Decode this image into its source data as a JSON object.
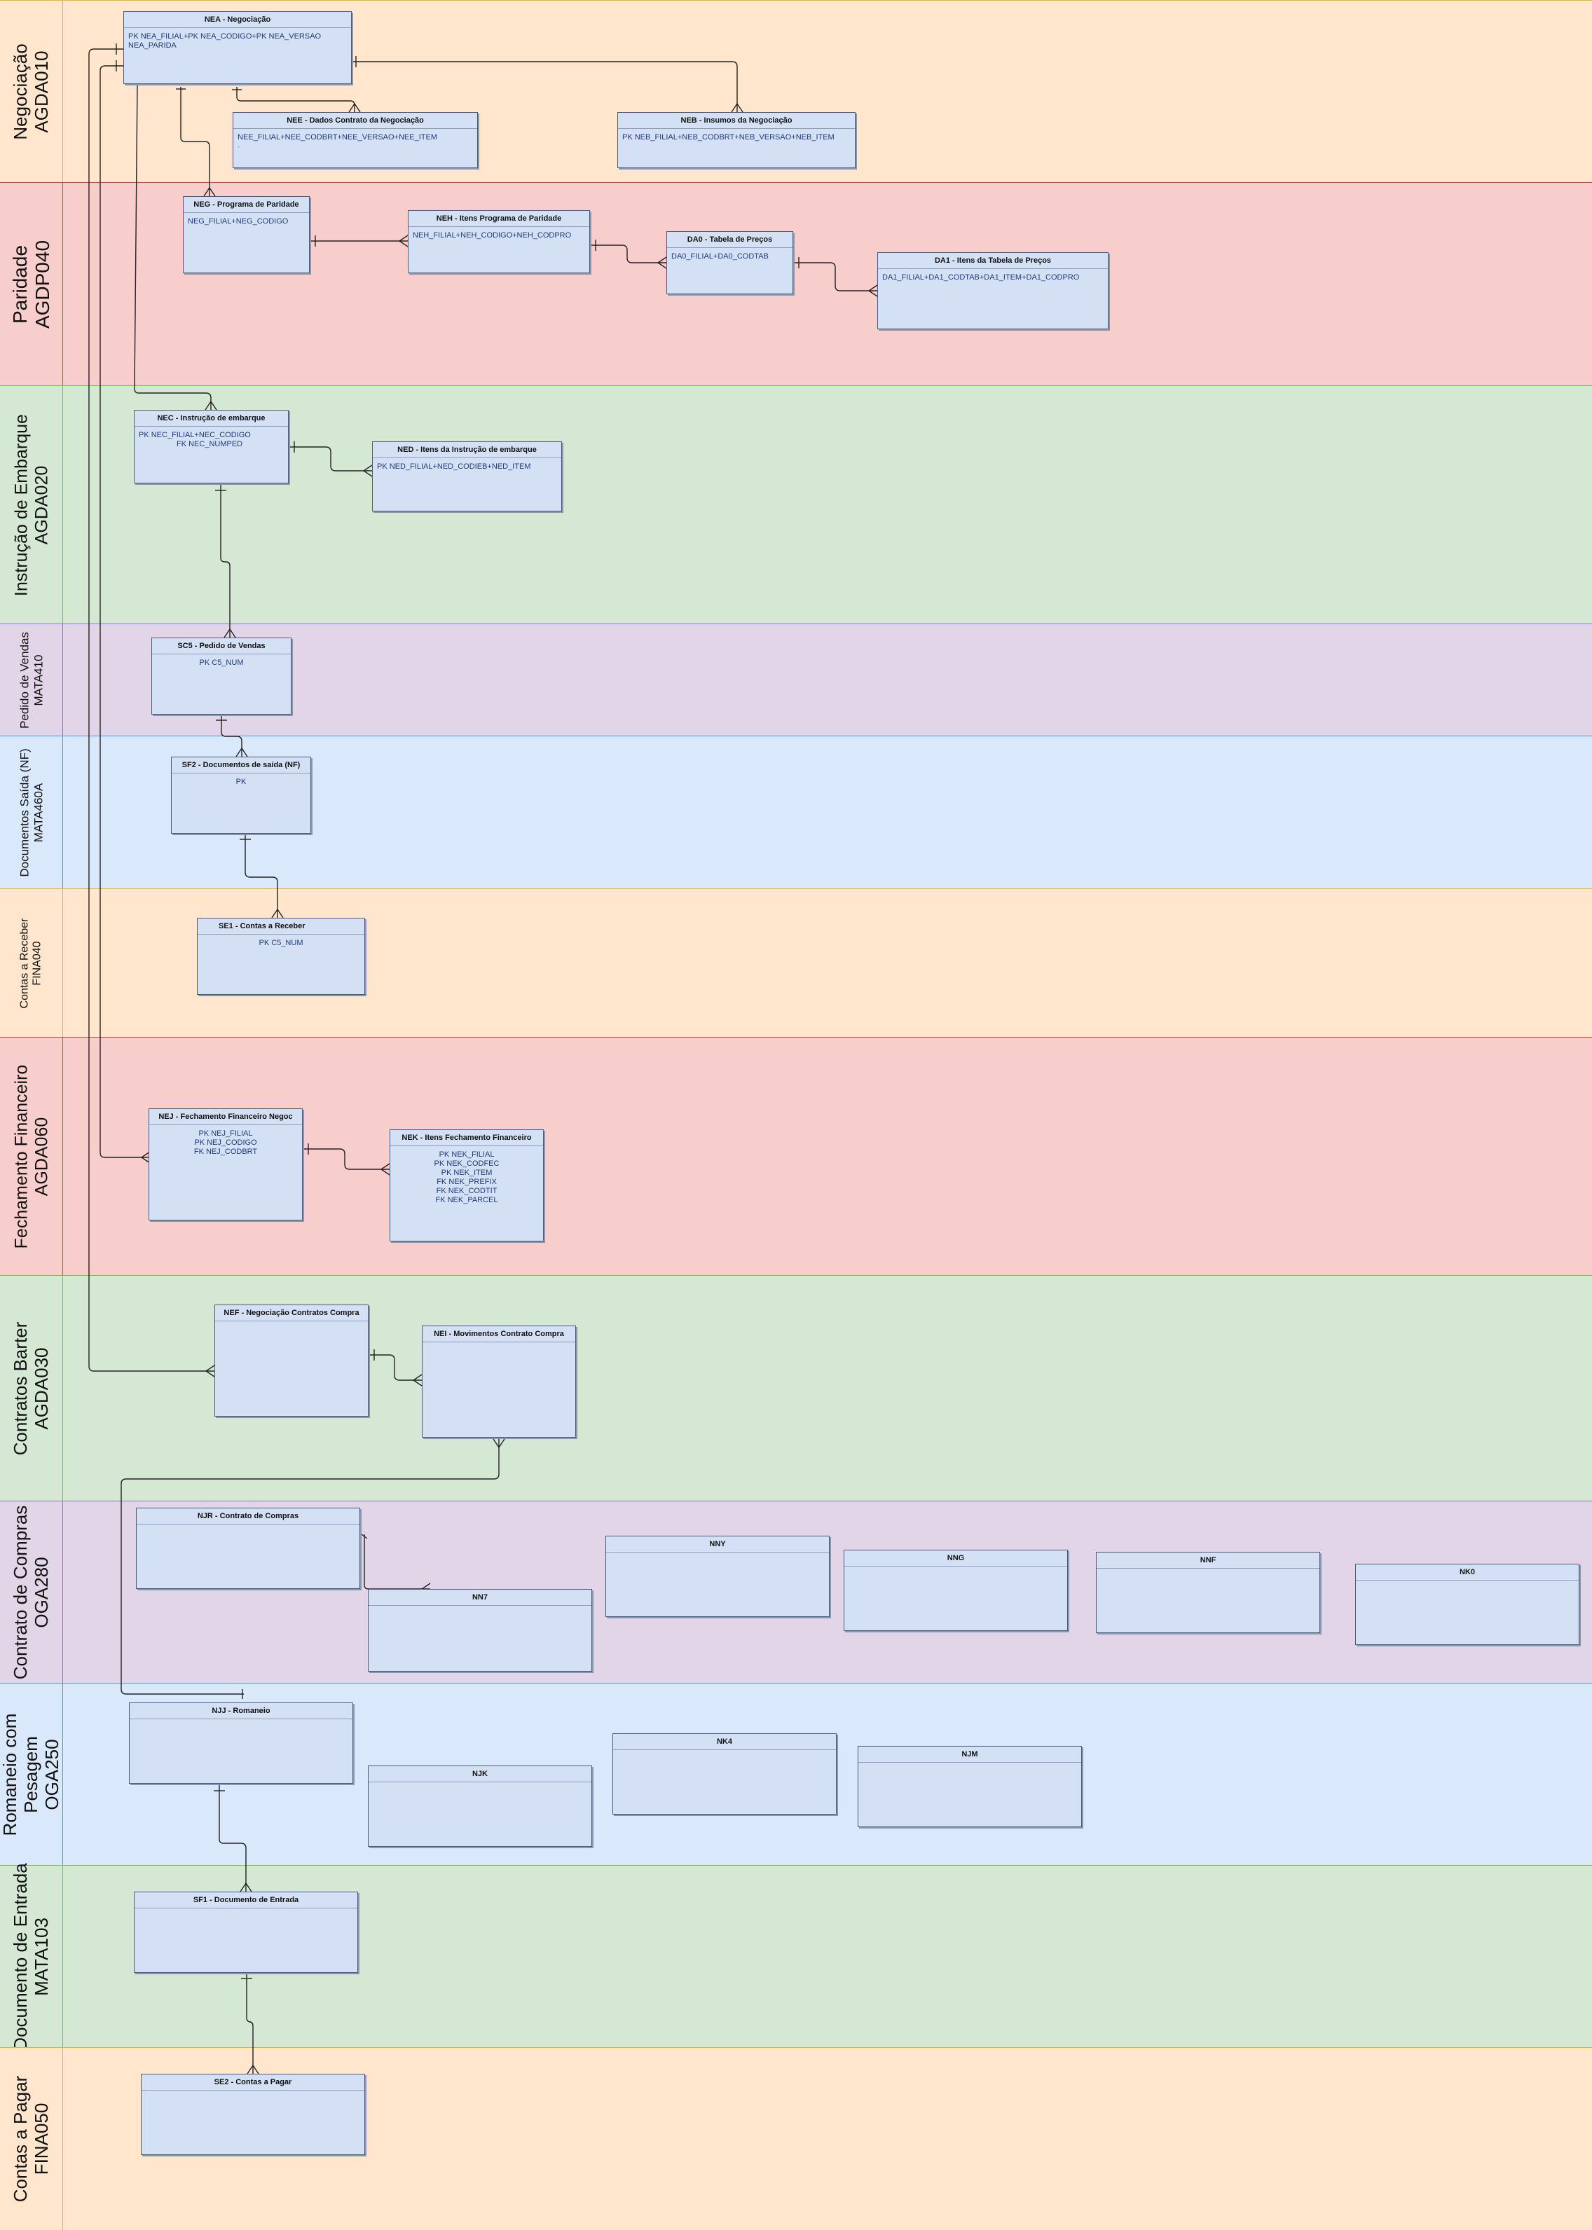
{
  "colors": {
    "orange": "#ffe6cc",
    "orange_border": "#d6b656",
    "red": "#f8cecc",
    "red_border": "#b85450",
    "green": "#d5e8d4",
    "green_border": "#82b366",
    "purple": "#e1d5e7",
    "purple_border": "#9673a6",
    "blue": "#dae8fc",
    "blue_border": "#6c8ebf",
    "entity_fill": "#d4e1f5",
    "entity_text": "#1f3a7a"
  },
  "lanes": [
    {
      "line1": "Negociação",
      "line2": "AGDA010"
    },
    {
      "line1": "Paridade",
      "line2": "AGDP040"
    },
    {
      "line1": "Instrução de Embarque",
      "line2": "AGDA020"
    },
    {
      "line1": "Pedido de Vendas",
      "line2": "MATA410"
    },
    {
      "line1": "Documentos Saída (NF)",
      "line2": "MATA460A"
    },
    {
      "line1": "Contas a Receber",
      "line2": "FINA040"
    },
    {
      "line1": "Fechamento Financeiro",
      "line2": "AGDA060"
    },
    {
      "line1": "Contratos Barter",
      "line2": "AGDA030"
    },
    {
      "line1": "Contrato de Compras",
      "line2": "OGA280"
    },
    {
      "line1": "Romaneio com Pesagem",
      "line2": "OGA250"
    },
    {
      "line1": "Documento de Entrada",
      "line2": "MATA103"
    },
    {
      "line1": "Contas a Pagar",
      "line2": "FINA050"
    }
  ],
  "entities": {
    "nea": {
      "title": "NEA - Negociação",
      "lines": [
        "PK NEA_FILIAL+PK NEA_CODIGO+PK NEA_VERSAO",
        "NEA_PARIDA"
      ]
    },
    "nee": {
      "title": "NEE - Dados Contrato da Negociação",
      "lines": [
        "NEE_FILIAL+NEE_CODBRT+NEE_VERSAO+NEE_ITEM",
        "-"
      ]
    },
    "neb": {
      "title": "NEB - Insumos da Negociação",
      "lines": [
        "PK NEB_FILIAL+NEB_CODBRT+NEB_VERSAO+NEB_ITEM"
      ]
    },
    "neg": {
      "title": "NEG - Programa de Paridade",
      "lines": [
        "NEG_FILIAL+NEG_CODIGO"
      ]
    },
    "neh": {
      "title": "NEH - Itens Programa de Paridade",
      "lines": [
        "NEH_FILIAL+NEH_CODIGO+NEH_CODPRO"
      ]
    },
    "da0": {
      "title": "DA0 - Tabela de Preços",
      "lines": [
        "DA0_FILIAL+DA0_CODTAB"
      ]
    },
    "da1": {
      "title": "DA1 - Itens da Tabela de Preços",
      "lines": [
        "DA1_FILIAL+DA1_CODTAB+DA1_ITEM+DA1_CODPRO"
      ]
    },
    "nec": {
      "title": "NEC - Instrução de embarque",
      "lines": [
        "PK NEC_FILIAL+NEC_CODIGO",
        "FK NEC_NUMPED"
      ]
    },
    "ned": {
      "title": "NED - Itens da Instrução de embarque",
      "lines": [
        "PK NED_FILIAL+NED_CODIEB+NED_ITEM"
      ]
    },
    "sc5": {
      "title": "SC5 - Pedido de Vendas",
      "lines": [
        "PK C5_NUM"
      ]
    },
    "sf2": {
      "title": "SF2 - Documentos de saída (NF)",
      "lines": [
        "PK"
      ]
    },
    "se1": {
      "title": "SE1 - Contas a Receber",
      "lines": [
        "PK C5_NUM"
      ]
    },
    "nej": {
      "title": "NEJ - Fechamento Financeiro Negoc",
      "lines": [
        "PK NEJ_FILIAL",
        "PK NEJ_CODIGO",
        "FK NEJ_CODBRT"
      ]
    },
    "nek": {
      "title": "NEK - Itens Fechamento Financeiro",
      "lines": [
        "PK NEK_FILIAL",
        "PK NEK_CODFEC",
        "PK NEK_ITEM",
        "FK NEK_PREFIX",
        "FK NEK_CODTIT",
        "FK NEK_PARCEL"
      ]
    },
    "nef": {
      "title": "NEF - Negociação Contratos Compra",
      "lines": []
    },
    "nei": {
      "title": "NEI - Movimentos Contrato Compra",
      "lines": []
    },
    "njr": {
      "title": "NJR - Contrato de Compras",
      "lines": []
    },
    "nn7": {
      "title": "NN7",
      "lines": []
    },
    "nny": {
      "title": "NNY",
      "lines": []
    },
    "nng": {
      "title": "NNG",
      "lines": []
    },
    "nnf": {
      "title": "NNF",
      "lines": []
    },
    "nk0": {
      "title": "NK0",
      "lines": []
    },
    "njj": {
      "title": "NJJ - Romaneio",
      "lines": []
    },
    "njk": {
      "title": "NJK",
      "lines": []
    },
    "nk4": {
      "title": "NK4",
      "lines": []
    },
    "njm": {
      "title": "NJM",
      "lines": []
    },
    "sf1": {
      "title": "SF1 - Documento de Entrada",
      "lines": []
    },
    "se2": {
      "title": "SE2 - Contas a Pagar",
      "lines": []
    }
  }
}
